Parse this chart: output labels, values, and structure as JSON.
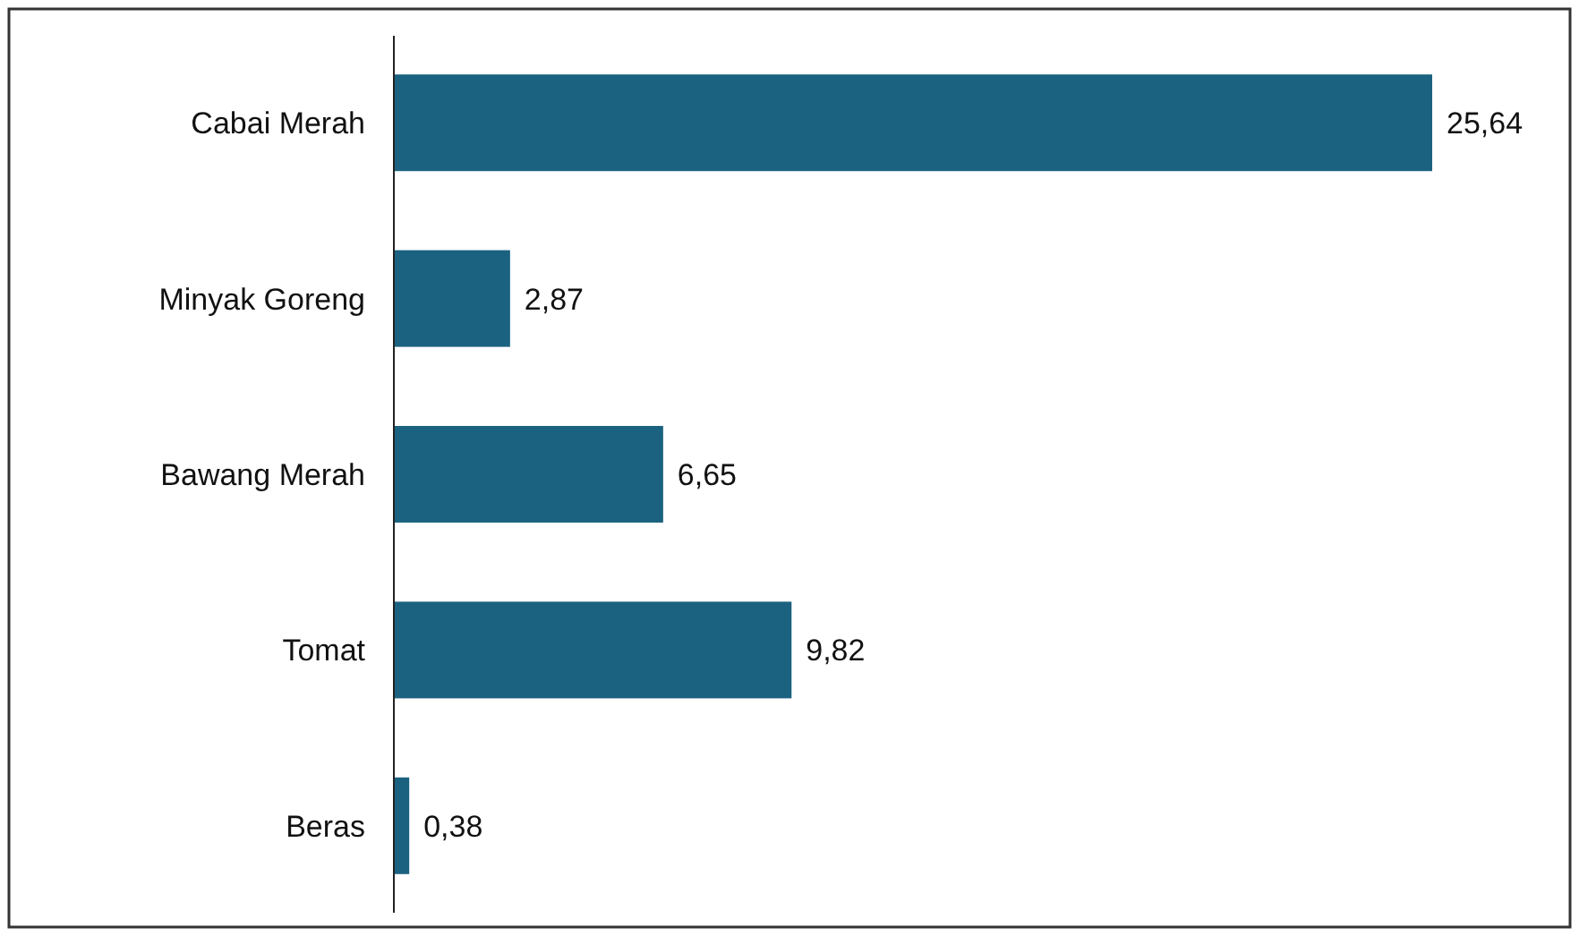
{
  "chart_data": {
    "type": "bar",
    "orientation": "horizontal",
    "categories": [
      "Cabai Merah",
      "Minyak Goreng",
      "Bawang Merah",
      "Tomat",
      "Beras"
    ],
    "values": [
      25.64,
      2.87,
      6.65,
      9.82,
      0.38
    ],
    "color": "#1b6280",
    "value_labels": [
      "25,64",
      "2,87",
      "6,65",
      "9,82",
      "0,38"
    ]
  }
}
